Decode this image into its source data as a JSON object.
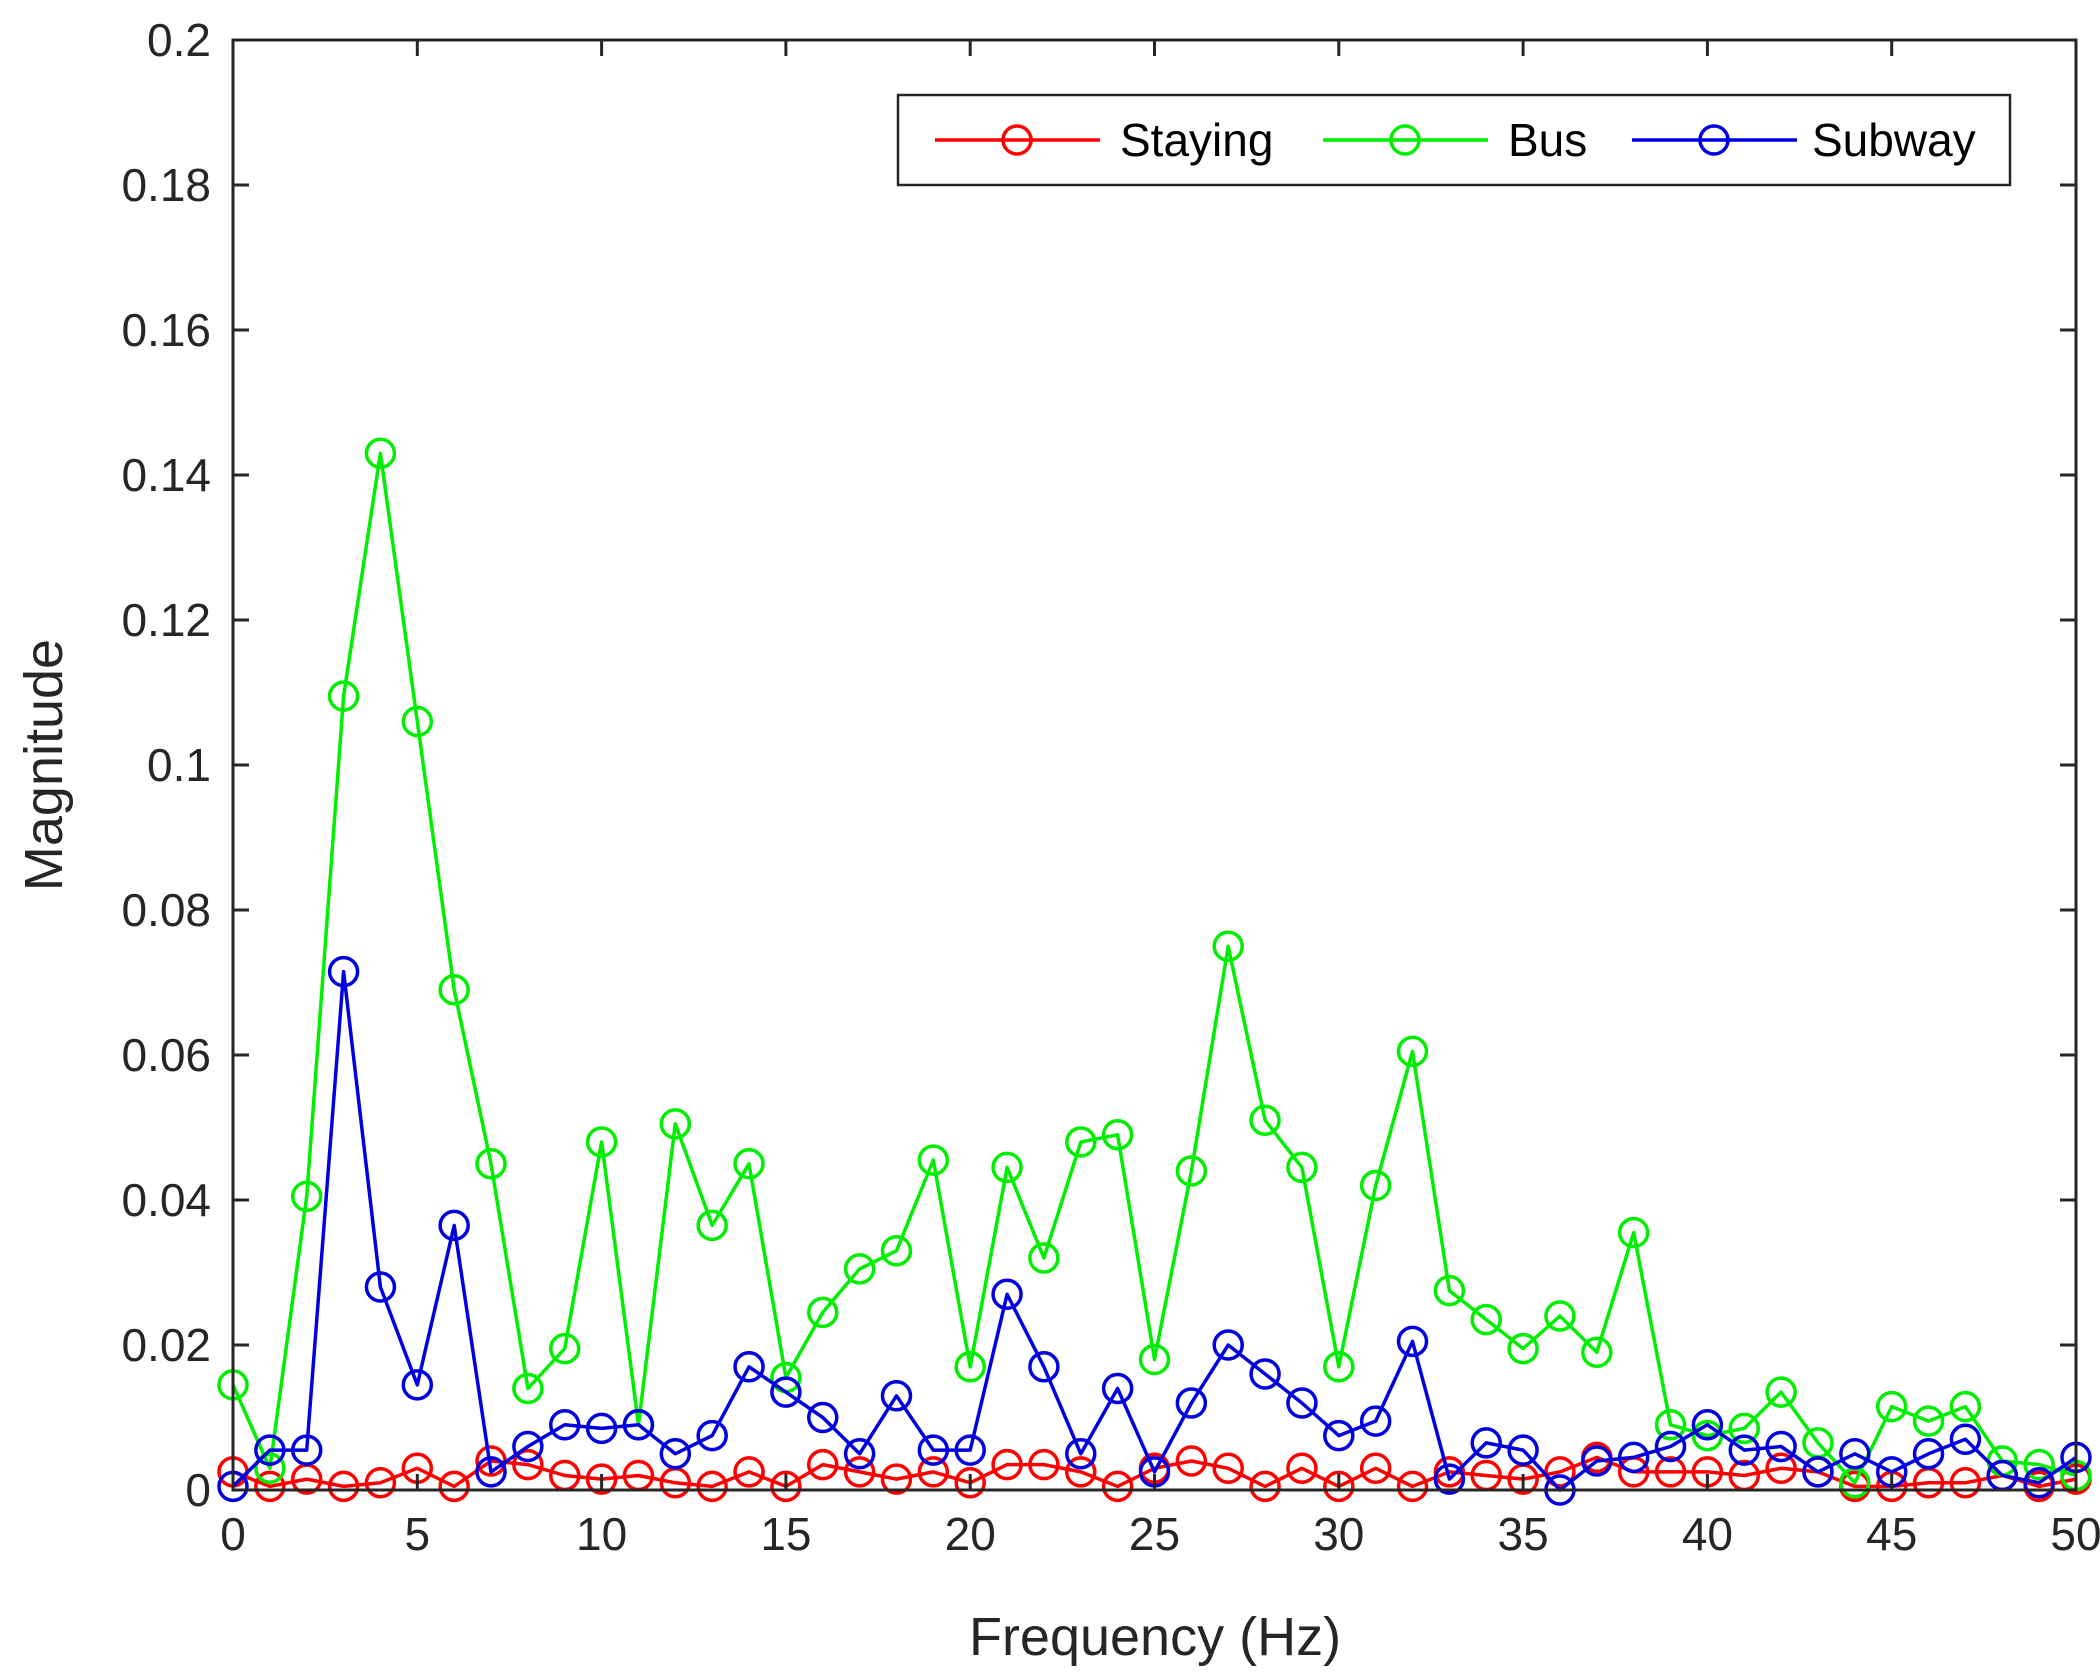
{
  "chart_data": {
    "type": "line",
    "title": "",
    "xlabel": "Frequency (Hz)",
    "ylabel": "Magnitude",
    "xlim": [
      0,
      50
    ],
    "ylim": [
      0,
      0.2
    ],
    "xticks": [
      0,
      5,
      10,
      15,
      20,
      25,
      30,
      35,
      40,
      45,
      50
    ],
    "xtick_labels": [
      "0",
      "5",
      "10",
      "15",
      "20",
      "25",
      "30",
      "35",
      "40",
      "45",
      "50"
    ],
    "yticks": [
      0,
      0.02,
      0.04,
      0.06,
      0.08,
      0.1,
      0.12,
      0.14,
      0.16,
      0.18,
      0.2
    ],
    "ytick_labels": [
      "0",
      "0.02",
      "0.04",
      "0.06",
      "0.08",
      "0.1",
      "0.12",
      "0.14",
      "0.16",
      "0.18",
      "0.2"
    ],
    "grid": false,
    "legend_position": "top-right",
    "x": [
      0,
      1,
      2,
      3,
      4,
      5,
      6,
      7,
      8,
      9,
      10,
      11,
      12,
      13,
      14,
      15,
      16,
      17,
      18,
      19,
      20,
      21,
      22,
      23,
      24,
      25,
      26,
      27,
      28,
      29,
      30,
      31,
      32,
      33,
      34,
      35,
      36,
      37,
      38,
      39,
      40,
      41,
      42,
      43,
      44,
      45,
      46,
      47,
      48,
      49,
      50
    ],
    "series": [
      {
        "name": "Staying",
        "color": "#ff0000",
        "marker": "circle",
        "values": [
          0.0025,
          0.0005,
          0.0015,
          0.0005,
          0.001,
          0.003,
          0.0005,
          0.004,
          0.0035,
          0.002,
          0.0015,
          0.002,
          0.001,
          0.0005,
          0.0025,
          0.0005,
          0.0035,
          0.0025,
          0.0015,
          0.0025,
          0.001,
          0.0035,
          0.0035,
          0.0025,
          0.0005,
          0.003,
          0.004,
          0.003,
          0.0005,
          0.003,
          0.0005,
          0.003,
          0.0005,
          0.0025,
          0.002,
          0.0015,
          0.0025,
          0.0045,
          0.0025,
          0.0025,
          0.0025,
          0.002,
          0.003,
          0.0025,
          0.0005,
          0.0005,
          0.001,
          0.001,
          0.002,
          0.0005,
          0.0015
        ]
      },
      {
        "name": "Bus",
        "color": "#00ee00",
        "marker": "circle",
        "values": [
          0.0145,
          0.003,
          0.0405,
          0.1095,
          0.143,
          0.106,
          0.069,
          0.045,
          0.014,
          0.0195,
          0.048,
          0.009,
          0.0505,
          0.0365,
          0.045,
          0.0155,
          0.0245,
          0.0305,
          0.033,
          0.0455,
          0.017,
          0.0445,
          0.032,
          0.048,
          0.049,
          0.018,
          0.044,
          0.075,
          0.051,
          0.0445,
          0.017,
          0.042,
          0.0605,
          0.0275,
          0.0235,
          0.0195,
          0.024,
          0.019,
          0.0355,
          0.009,
          0.0075,
          0.0085,
          0.0135,
          0.0065,
          0.001,
          0.0115,
          0.0095,
          0.0115,
          0.004,
          0.0035,
          0.002
        ]
      },
      {
        "name": "Subway",
        "color": "#0000e0",
        "marker": "circle",
        "values": [
          0.0005,
          0.0055,
          0.0055,
          0.0715,
          0.028,
          0.0145,
          0.0365,
          0.0025,
          0.006,
          0.009,
          0.0085,
          0.009,
          0.005,
          0.0075,
          0.017,
          0.0135,
          0.01,
          0.005,
          0.013,
          0.0055,
          0.0055,
          0.027,
          0.017,
          0.005,
          0.014,
          0.0025,
          0.012,
          0.02,
          0.016,
          0.012,
          0.0075,
          0.0095,
          0.0205,
          0.0015,
          0.0065,
          0.0055,
          0.0,
          0.004,
          0.0045,
          0.006,
          0.009,
          0.0055,
          0.006,
          0.0025,
          0.005,
          0.0025,
          0.005,
          0.007,
          0.002,
          0.001,
          0.0045
        ]
      }
    ]
  }
}
